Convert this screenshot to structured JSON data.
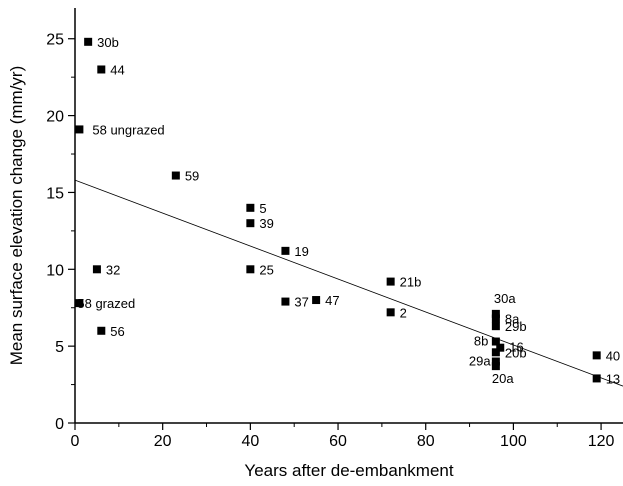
{
  "chart_data": {
    "type": "scatter",
    "title": "",
    "xlabel": "Years after de-embankment",
    "ylabel": "Mean surface elevation change (mm/yr)",
    "xlim": [
      0,
      125
    ],
    "ylim": [
      0,
      27
    ],
    "x_ticks": [
      0,
      20,
      40,
      60,
      80,
      100,
      120
    ],
    "y_ticks": [
      0,
      5,
      10,
      15,
      20,
      25
    ],
    "grid": false,
    "legend": "none",
    "marker_color": "#000000",
    "points": [
      {
        "label": "30b",
        "x": 3,
        "y": 24.8
      },
      {
        "label": "44",
        "x": 6,
        "y": 23.0
      },
      {
        "label": "58 ungrazed",
        "x": 1,
        "y": 19.1
      },
      {
        "label": "59",
        "x": 23,
        "y": 16.1
      },
      {
        "label": "5",
        "x": 40,
        "y": 14.0
      },
      {
        "label": "39",
        "x": 40,
        "y": 13.0
      },
      {
        "label": "19",
        "x": 48,
        "y": 11.2
      },
      {
        "label": "32",
        "x": 5,
        "y": 10.0
      },
      {
        "label": "25",
        "x": 40,
        "y": 10.0
      },
      {
        "label": "21b",
        "x": 72,
        "y": 9.2
      },
      {
        "label": "58 grazed",
        "x": 1,
        "y": 7.8
      },
      {
        "label": "37",
        "x": 48,
        "y": 7.9
      },
      {
        "label": "47",
        "x": 55,
        "y": 8.0
      },
      {
        "label": "2",
        "x": 72,
        "y": 7.2
      },
      {
        "label": "56",
        "x": 6,
        "y": 6.0
      },
      {
        "label": "30a",
        "x": 96,
        "y": 7.1
      },
      {
        "label": "8a",
        "x": 96,
        "y": 6.8
      },
      {
        "label": "29b",
        "x": 96,
        "y": 6.3
      },
      {
        "label": "8b",
        "x": 96,
        "y": 5.3
      },
      {
        "label": "16",
        "x": 97,
        "y": 4.9
      },
      {
        "label": "20b",
        "x": 96,
        "y": 4.6
      },
      {
        "label": "29a",
        "x": 96,
        "y": 4.0
      },
      {
        "label": "20a",
        "x": 96,
        "y": 3.7
      },
      {
        "label": "40",
        "x": 119,
        "y": 4.4
      },
      {
        "label": "13",
        "x": 119,
        "y": 2.9
      }
    ],
    "trendline": {
      "x": [
        0,
        125
      ],
      "y": [
        15.8,
        2.4
      ]
    }
  }
}
